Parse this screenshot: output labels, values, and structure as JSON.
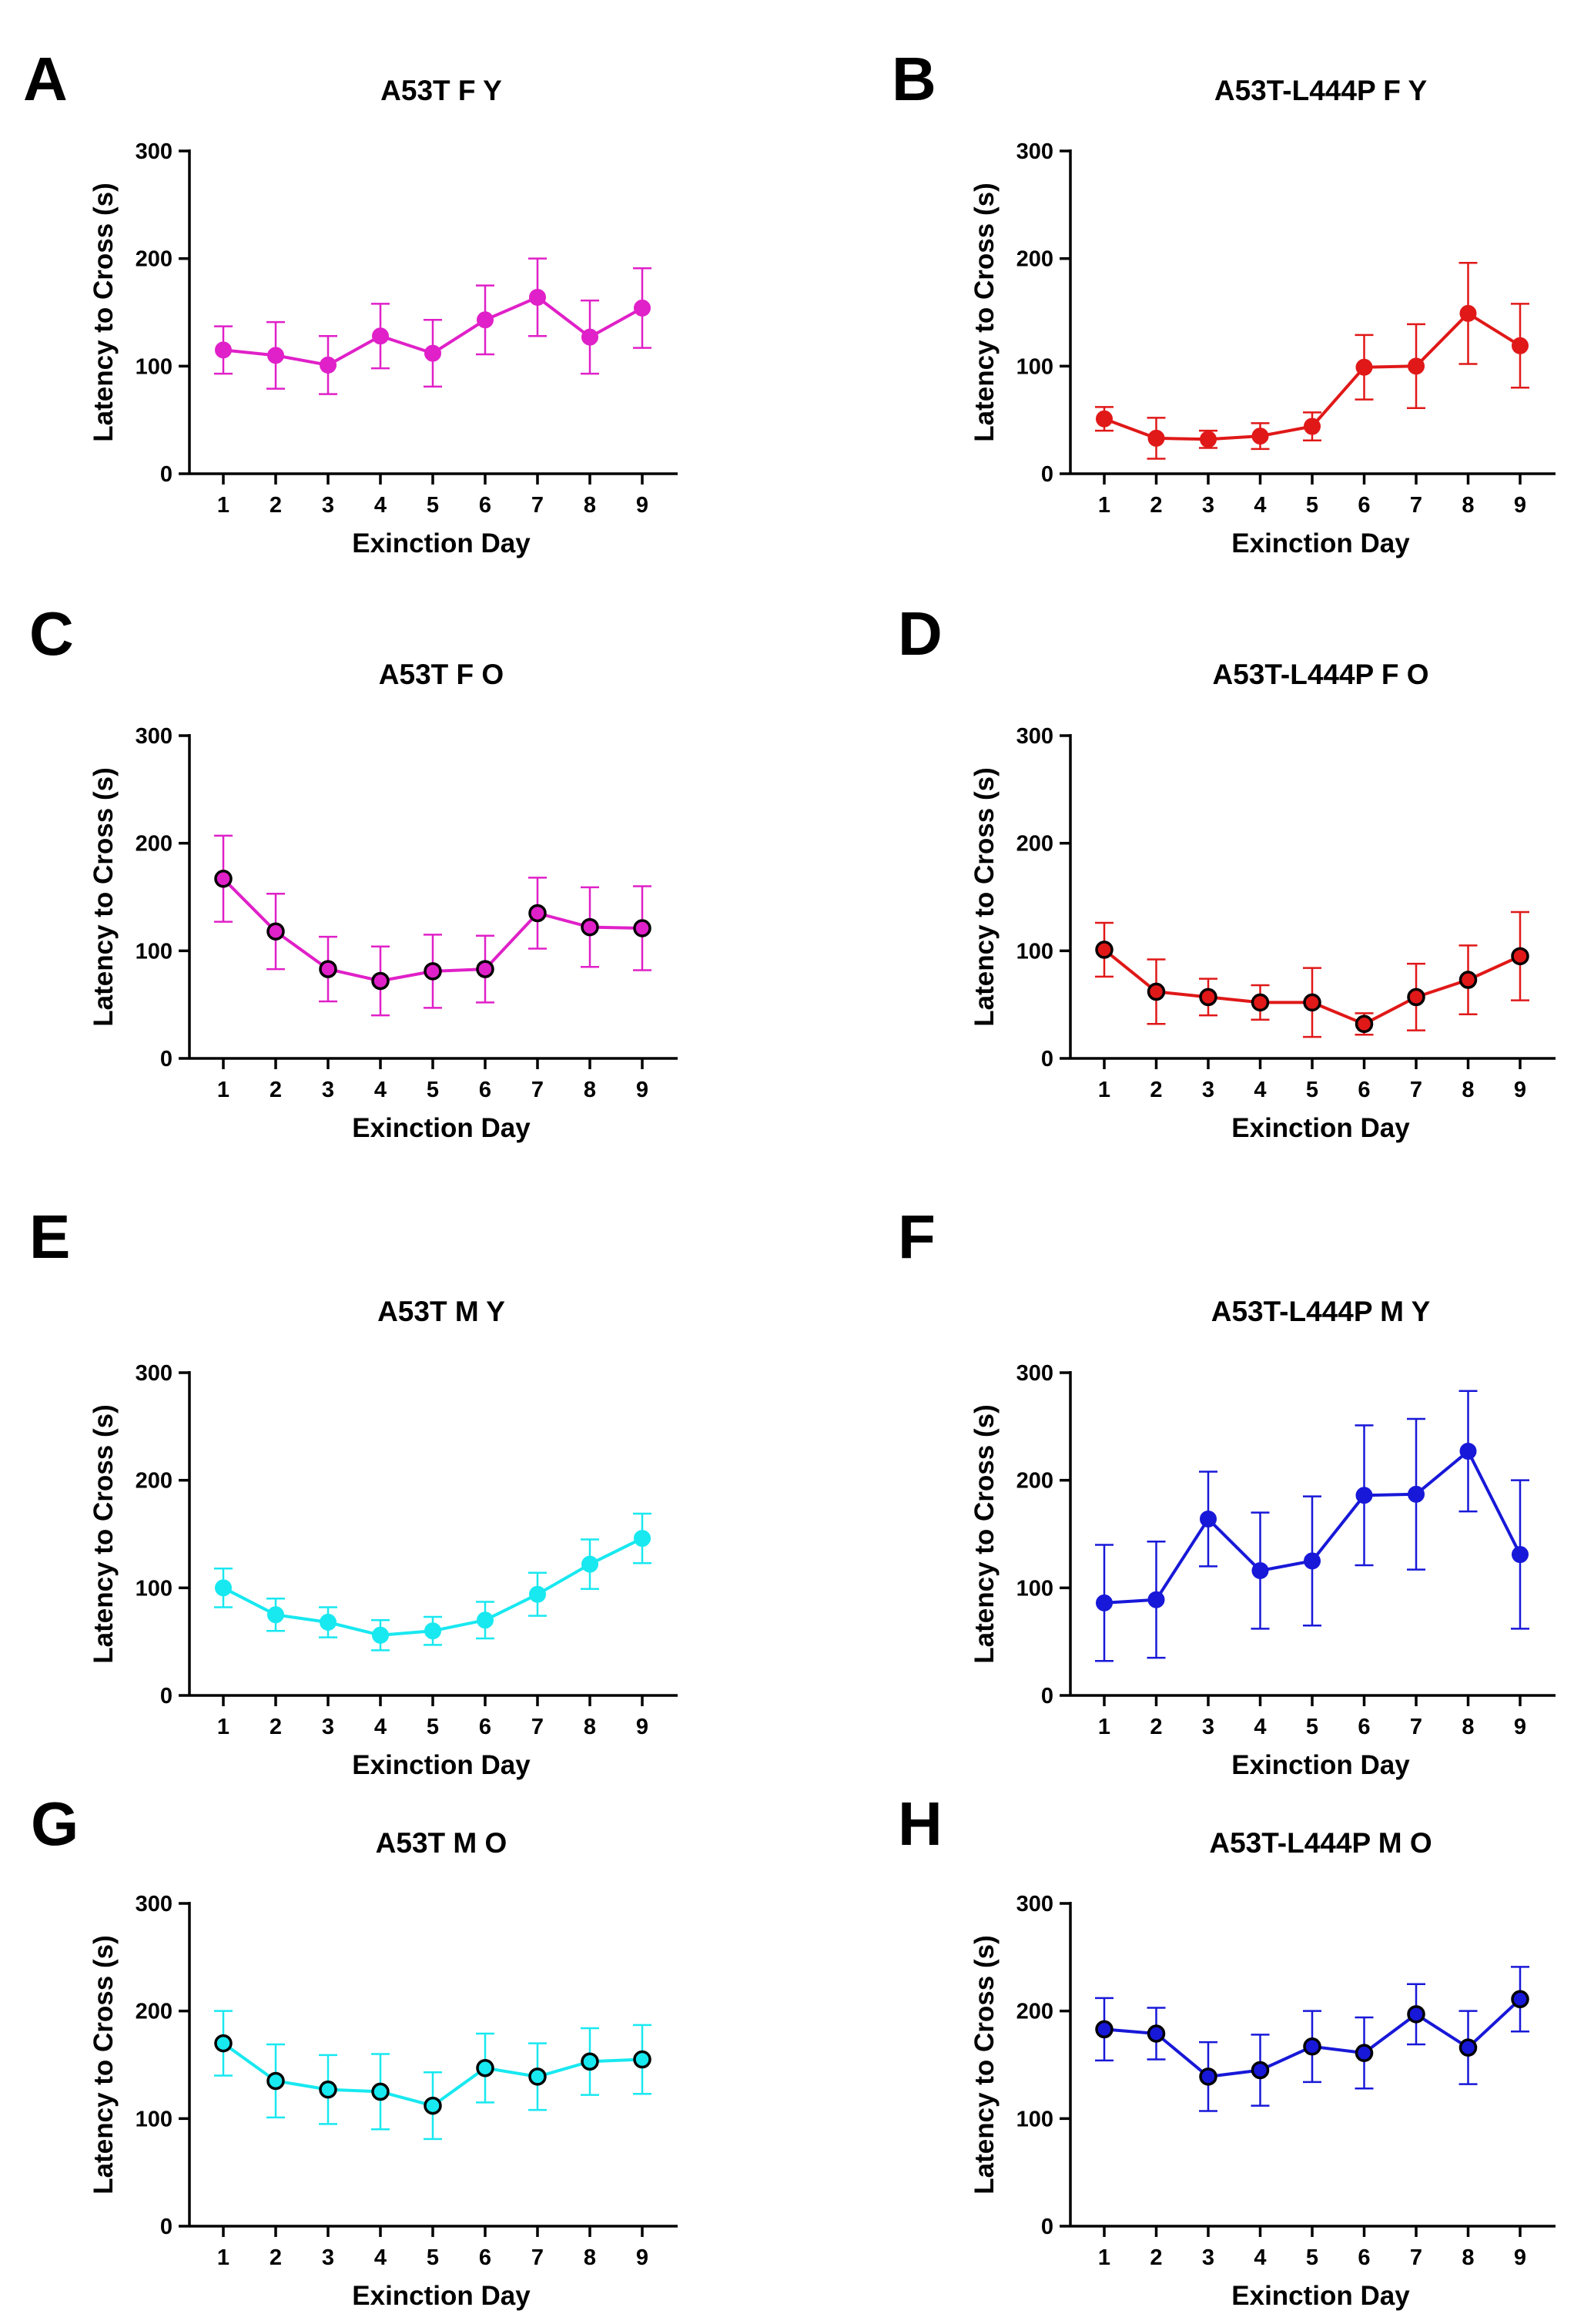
{
  "chart_data": [
    {
      "panel": "A",
      "type": "line",
      "title": "A53T F Y",
      "xlabel": "Exinction Day",
      "ylabel": "Latency to Cross (s)",
      "x": [
        1,
        2,
        3,
        4,
        5,
        6,
        7,
        8,
        9
      ],
      "values": [
        115,
        110,
        101,
        128,
        112,
        143,
        164,
        127,
        154
      ],
      "errors": [
        22,
        31,
        27,
        30,
        31,
        32,
        36,
        34,
        37
      ],
      "ylim": [
        0,
        300
      ],
      "yticks": [
        0,
        100,
        200,
        300
      ],
      "color": "#e020c8",
      "marker": "filled"
    },
    {
      "panel": "B",
      "type": "line",
      "title": "A53T-L444P F Y",
      "xlabel": "Exinction Day",
      "ylabel": "Latency to Cross (s)",
      "x": [
        1,
        2,
        3,
        4,
        5,
        6,
        7,
        8,
        9
      ],
      "values": [
        51,
        33,
        32,
        35,
        44,
        99,
        100,
        149,
        119
      ],
      "errors": [
        11,
        19,
        8,
        12,
        13,
        30,
        39,
        47,
        39
      ],
      "ylim": [
        0,
        300
      ],
      "yticks": [
        0,
        100,
        200,
        300
      ],
      "color": "#e01818",
      "marker": "filled"
    },
    {
      "panel": "C",
      "type": "line",
      "title": "A53T F O",
      "xlabel": "Exinction Day",
      "ylabel": "Latency to Cross (s)",
      "x": [
        1,
        2,
        3,
        4,
        5,
        6,
        7,
        8,
        9
      ],
      "values": [
        167,
        118,
        83,
        72,
        81,
        83,
        135,
        122,
        121
      ],
      "errors": [
        40,
        35,
        30,
        32,
        34,
        31,
        33,
        37,
        39
      ],
      "ylim": [
        0,
        300
      ],
      "yticks": [
        0,
        100,
        200,
        300
      ],
      "color": "#e020c8",
      "marker": "open"
    },
    {
      "panel": "D",
      "type": "line",
      "title": "A53T-L444P F O",
      "xlabel": "Exinction Day",
      "ylabel": "Latency to Cross (s)",
      "x": [
        1,
        2,
        3,
        4,
        5,
        6,
        7,
        8,
        9
      ],
      "values": [
        101,
        62,
        57,
        52,
        52,
        32,
        57,
        73,
        95
      ],
      "errors": [
        25,
        30,
        17,
        16,
        32,
        10,
        31,
        32,
        41
      ],
      "ylim": [
        0,
        300
      ],
      "yticks": [
        0,
        100,
        200,
        300
      ],
      "color": "#e01818",
      "marker": "open"
    },
    {
      "panel": "E",
      "type": "line",
      "title": "A53T M Y",
      "xlabel": "Exinction Day",
      "ylabel": "Latency to Cross (s)",
      "x": [
        1,
        2,
        3,
        4,
        5,
        6,
        7,
        8,
        9
      ],
      "values": [
        100,
        75,
        68,
        56,
        60,
        70,
        94,
        122,
        146
      ],
      "errors": [
        18,
        15,
        14,
        14,
        13,
        17,
        20,
        23,
        23
      ],
      "ylim": [
        0,
        300
      ],
      "yticks": [
        0,
        100,
        200,
        300
      ],
      "color": "#18e8f0",
      "marker": "filled"
    },
    {
      "panel": "F",
      "type": "line",
      "title": "A53T-L444P M Y",
      "xlabel": "Exinction Day",
      "ylabel": "Latency to Cross (s)",
      "x": [
        1,
        2,
        3,
        4,
        5,
        6,
        7,
        8,
        9
      ],
      "values": [
        86,
        89,
        164,
        116,
        125,
        186,
        187,
        227,
        131
      ],
      "errors": [
        54,
        54,
        44,
        54,
        60,
        65,
        70,
        56,
        69
      ],
      "ylim": [
        0,
        300
      ],
      "yticks": [
        0,
        100,
        200,
        300
      ],
      "color": "#1818d8",
      "marker": "filled"
    },
    {
      "panel": "G",
      "type": "line",
      "title": "A53T M O",
      "xlabel": "Exinction Day",
      "ylabel": "Latency to Cross (s)",
      "x": [
        1,
        2,
        3,
        4,
        5,
        6,
        7,
        8,
        9
      ],
      "values": [
        170,
        135,
        127,
        125,
        112,
        147,
        139,
        153,
        155
      ],
      "errors": [
        30,
        34,
        32,
        35,
        31,
        32,
        31,
        31,
        32
      ],
      "ylim": [
        0,
        300
      ],
      "yticks": [
        0,
        100,
        200,
        300
      ],
      "color": "#18e8f0",
      "marker": "open"
    },
    {
      "panel": "H",
      "type": "line",
      "title": "A53T-L444P M O",
      "xlabel": "Exinction Day",
      "ylabel": "Latency to Cross (s)",
      "x": [
        1,
        2,
        3,
        4,
        5,
        6,
        7,
        8,
        9
      ],
      "values": [
        183,
        179,
        139,
        145,
        167,
        161,
        197,
        166,
        211
      ],
      "errors": [
        29,
        24,
        32,
        33,
        33,
        33,
        28,
        34,
        30
      ],
      "ylim": [
        0,
        300
      ],
      "yticks": [
        0,
        100,
        200,
        300
      ],
      "color": "#1818d8",
      "marker": "open"
    }
  ]
}
